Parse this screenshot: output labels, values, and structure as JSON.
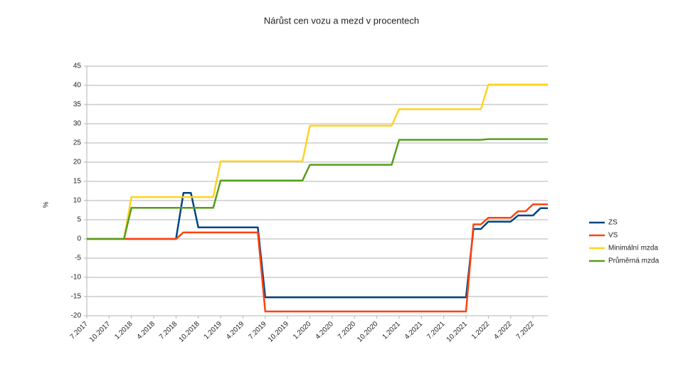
{
  "chart_data": {
    "type": "line",
    "title": "Nárůst cen vozu a mezd v procentech",
    "y_label": "%",
    "categories": [
      "7.2017",
      null,
      null,
      "10.2017",
      null,
      null,
      "1.2018",
      null,
      null,
      "4.2018",
      null,
      null,
      "7.2018",
      null,
      null,
      "10.2018",
      null,
      null,
      "1.2019",
      null,
      null,
      "4.2019",
      null,
      null,
      "7.2019",
      null,
      null,
      "10.2019",
      null,
      null,
      "1.2020",
      null,
      null,
      "4.2020",
      null,
      null,
      "7.2020",
      null,
      null,
      "10.2020",
      null,
      null,
      "1.2021",
      null,
      null,
      "4.2021",
      null,
      null,
      "7.2021",
      null,
      null,
      "10.2021",
      null,
      null,
      "1.2022",
      null,
      null,
      "4.2022",
      null,
      null,
      "7.2022",
      null,
      null
    ],
    "series": [
      {
        "name": "ZS",
        "color": "#004586",
        "values": [
          0,
          0,
          0,
          0,
          0,
          0,
          0,
          0,
          0,
          0,
          0,
          0,
          0,
          12,
          12,
          3,
          3,
          3,
          3,
          3,
          3,
          3,
          3,
          3,
          -15.2,
          -15.2,
          -15.2,
          -15.2,
          -15.2,
          -15.2,
          -15.2,
          -15.2,
          -15.2,
          -15.2,
          -15.2,
          -15.2,
          -15.2,
          -15.2,
          -15.2,
          -15.2,
          -15.2,
          -15.2,
          -15.2,
          -15.2,
          -15.2,
          -15.2,
          -15.2,
          -15.2,
          -15.2,
          -15.2,
          -15.2,
          -15.2,
          2.6,
          2.6,
          4.5,
          4.5,
          4.5,
          4.5,
          6.1,
          6.1,
          6.1,
          8,
          8
        ]
      },
      {
        "name": "VS",
        "color": "#ff420e",
        "values": [
          0,
          0,
          0,
          0,
          0,
          0,
          0,
          0,
          0,
          0,
          0,
          0,
          0,
          1.7,
          1.7,
          1.7,
          1.7,
          1.7,
          1.7,
          1.7,
          1.7,
          1.7,
          1.7,
          1.7,
          -18.9,
          -18.9,
          -18.9,
          -18.9,
          -18.9,
          -18.9,
          -18.9,
          -18.9,
          -18.9,
          -18.9,
          -18.9,
          -18.9,
          -18.9,
          -18.9,
          -18.9,
          -18.9,
          -18.9,
          -18.9,
          -18.9,
          -18.9,
          -18.9,
          -18.9,
          -18.9,
          -18.9,
          -18.9,
          -18.9,
          -18.9,
          -18.9,
          3.8,
          3.8,
          5.5,
          5.5,
          5.5,
          5.5,
          7.2,
          7.2,
          9,
          9,
          9
        ]
      },
      {
        "name": "Minimální mzda",
        "color": "#ffd320",
        "values": [
          0,
          0,
          0,
          0,
          0,
          0,
          10.9,
          10.9,
          10.9,
          10.9,
          10.9,
          10.9,
          10.9,
          10.9,
          10.9,
          10.9,
          10.9,
          10.9,
          20.2,
          20.2,
          20.2,
          20.2,
          20.2,
          20.2,
          20.2,
          20.2,
          20.2,
          20.2,
          20.2,
          20.2,
          29.5,
          29.5,
          29.5,
          29.5,
          29.5,
          29.5,
          29.5,
          29.5,
          29.5,
          29.5,
          29.5,
          29.5,
          33.8,
          33.8,
          33.8,
          33.8,
          33.8,
          33.8,
          33.8,
          33.8,
          33.8,
          33.8,
          33.8,
          33.8,
          40.2,
          40.2,
          40.2,
          40.2,
          40.2,
          40.2,
          40.2,
          40.2,
          40.2
        ]
      },
      {
        "name": "Průměrná mzda",
        "color": "#579d1c",
        "values": [
          0,
          0,
          0,
          0,
          0,
          0,
          8.1,
          8.1,
          8.1,
          8.1,
          8.1,
          8.1,
          8.1,
          8.1,
          8.1,
          8.1,
          8.1,
          8.1,
          15.2,
          15.2,
          15.2,
          15.2,
          15.2,
          15.2,
          15.2,
          15.2,
          15.2,
          15.2,
          15.2,
          15.2,
          19.3,
          19.3,
          19.3,
          19.3,
          19.3,
          19.3,
          19.3,
          19.3,
          19.3,
          19.3,
          19.3,
          19.3,
          25.8,
          25.8,
          25.8,
          25.8,
          25.8,
          25.8,
          25.8,
          25.8,
          25.8,
          25.8,
          25.8,
          25.8,
          26,
          26,
          26,
          26,
          26,
          26,
          26,
          26,
          26
        ]
      }
    ],
    "ylim": [
      -20,
      45
    ],
    "yticks": [
      -20,
      -15,
      -10,
      -5,
      0,
      5,
      10,
      15,
      20,
      25,
      30,
      35,
      40,
      45
    ],
    "grid": true,
    "legend": "right"
  }
}
